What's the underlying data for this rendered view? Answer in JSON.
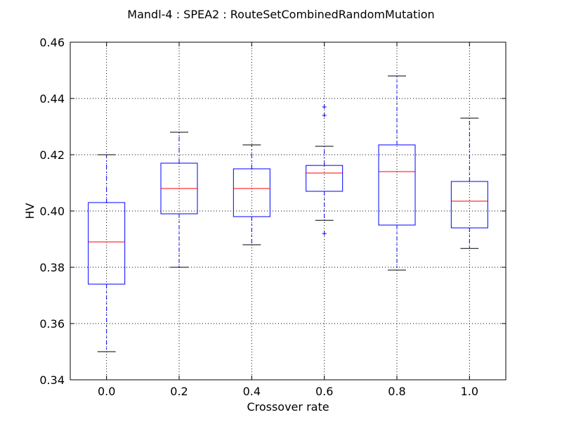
{
  "chart_data": {
    "type": "box",
    "title": "Mandl-4 : SPEA2 : RouteSetCombinedRandomMutation",
    "xlabel": "Crossover rate",
    "ylabel": "HV",
    "categories": [
      "0.0",
      "0.2",
      "0.4",
      "0.6",
      "0.8",
      "1.0"
    ],
    "ylim": [
      0.34,
      0.46
    ],
    "yticks": [
      "0.34",
      "0.36",
      "0.38",
      "0.40",
      "0.42",
      "0.44",
      "0.46"
    ],
    "grid": true,
    "boxes": [
      {
        "category": "0.0",
        "whisker_low": 0.35,
        "q1": 0.374,
        "median": 0.389,
        "q3": 0.403,
        "whisker_high": 0.42,
        "outliers": []
      },
      {
        "category": "0.2",
        "whisker_low": 0.38,
        "q1": 0.399,
        "median": 0.408,
        "q3": 0.417,
        "whisker_high": 0.428,
        "outliers": []
      },
      {
        "category": "0.4",
        "whisker_low": 0.388,
        "q1": 0.398,
        "median": 0.408,
        "q3": 0.415,
        "whisker_high": 0.4235,
        "outliers": []
      },
      {
        "category": "0.6",
        "whisker_low": 0.3967,
        "q1": 0.407,
        "median": 0.4135,
        "q3": 0.4162,
        "whisker_high": 0.423,
        "outliers": [
          0.392,
          0.434,
          0.437
        ]
      },
      {
        "category": "0.8",
        "whisker_low": 0.379,
        "q1": 0.395,
        "median": 0.414,
        "q3": 0.4235,
        "whisker_high": 0.448,
        "outliers": []
      },
      {
        "category": "1.0",
        "whisker_low": 0.3867,
        "q1": 0.394,
        "median": 0.4035,
        "q3": 0.4105,
        "whisker_high": 0.433,
        "outliers": []
      }
    ],
    "colors": {
      "box": "#0000ff",
      "median": "#ff0000",
      "whisker": "#0000ff",
      "cap": "#000000",
      "outlier": "#0000ff",
      "grid": "#000000"
    }
  }
}
